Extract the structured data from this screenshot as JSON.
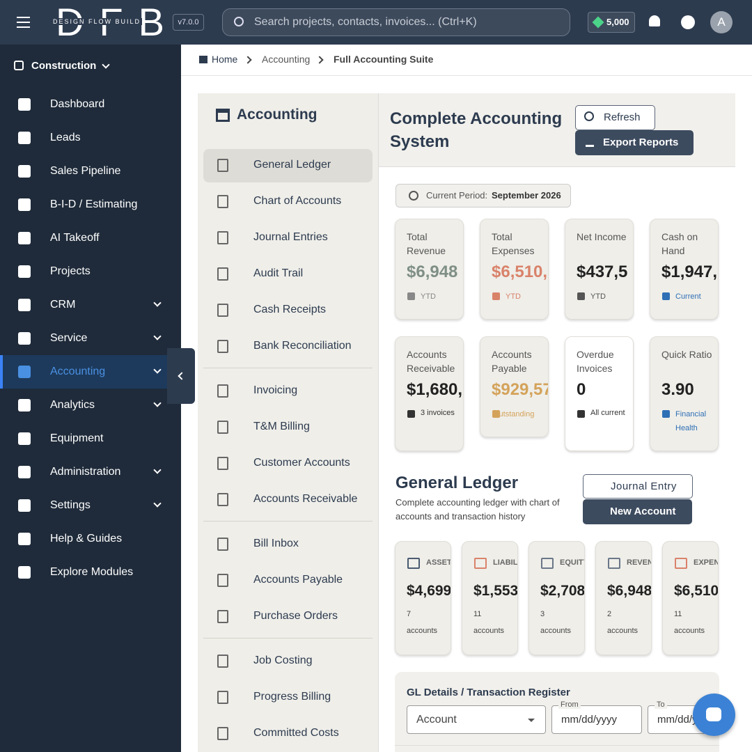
{
  "topbar": {
    "brand": "DFB",
    "tagline": "DESIGN FLOW BUILD",
    "version": "v7.0.0",
    "search_placeholder": "Search projects, contacts, invoices... (Ctrl+K)",
    "credits": "5,000",
    "avatar": "A"
  },
  "sidebar": {
    "workspace": "Construction",
    "items": [
      {
        "label": "Dashboard"
      },
      {
        "label": "Leads"
      },
      {
        "label": "Sales Pipeline"
      },
      {
        "label": "B-I-D / Estimating"
      },
      {
        "label": "AI Takeoff"
      },
      {
        "label": "Projects"
      },
      {
        "label": "CRM",
        "expandable": true
      },
      {
        "label": "Service",
        "expandable": true
      },
      {
        "label": "Accounting",
        "expandable": true,
        "active": true
      },
      {
        "label": "Analytics",
        "expandable": true
      },
      {
        "label": "Equipment"
      },
      {
        "label": "Administration",
        "expandable": true
      },
      {
        "label": "Settings",
        "expandable": true
      },
      {
        "label": "Help & Guides"
      },
      {
        "label": "Explore Modules"
      }
    ]
  },
  "breadcrumb": [
    "Home",
    "Accounting",
    "Full Accounting Suite"
  ],
  "submenu": {
    "title": "Accounting",
    "groups": [
      [
        "General Ledger",
        "Chart of Accounts",
        "Journal Entries",
        "Audit Trail",
        "Cash Receipts",
        "Bank Reconciliation"
      ],
      [
        "Invoicing",
        "T&M Billing",
        "Customer Accounts",
        "Accounts Receivable"
      ],
      [
        "Bill Inbox",
        "Accounts Payable",
        "Purchase Orders"
      ],
      [
        "Job Costing",
        "Progress Billing",
        "Committed Costs"
      ]
    ],
    "active": "General Ledger"
  },
  "header": {
    "title": "Complete Accounting System",
    "buttons": [
      "Refresh",
      "Export Reports"
    ]
  },
  "period": {
    "label": "Current Period:",
    "value": "September 2026"
  },
  "kpis": [
    {
      "label": "Total Revenue",
      "value": "$6,948",
      "note": "YTD",
      "color": "#7f8f86",
      "note_color": "#888888"
    },
    {
      "label": "Total Expenses",
      "value": "$6,510,",
      "note": "YTD",
      "color": "#d9826a",
      "note_color": "#d9826a"
    },
    {
      "label": "Net Income",
      "value": "$437,5",
      "note": "YTD",
      "color": "#222222",
      "note_color": "#555555"
    },
    {
      "label": "Cash on Hand",
      "value": "$1,947,",
      "note": "Current",
      "color": "#222222",
      "note_color": "#2f6fb5"
    },
    {
      "label": "Accounts Receivable",
      "value": "$1,680,",
      "note": "3 invoices",
      "color": "#222222",
      "note_color": "#333333"
    },
    {
      "label": "Accounts Payable",
      "value": "$929,57",
      "note": "Outstanding",
      "color": "#d4a35a",
      "note_color": "#d4a35a"
    },
    {
      "label": "Overdue Invoices",
      "value": "0",
      "note": "All current",
      "color": "#222222",
      "note_color": "#333333"
    },
    {
      "label": "Quick Ratio",
      "value": "3.90",
      "note": "Financial Health",
      "color": "#222222",
      "note_color": "#2f6fb5"
    }
  ],
  "ledger": {
    "title": "General Ledger",
    "description": "Complete accounting ledger with chart of accounts and transaction history",
    "buttons": [
      "Journal Entry",
      "New Account"
    ],
    "account_types": [
      {
        "name": "ASSET",
        "value": "$4,699",
        "count": "7",
        "unit": "accounts",
        "color": "#4a5a70"
      },
      {
        "name": "LIABILI",
        "value": "$1,553,",
        "count": "11",
        "unit": "accounts",
        "color": "#d9826a"
      },
      {
        "name": "EQUITY",
        "value": "$2,708",
        "count": "3",
        "unit": "accounts",
        "color": "#6b7789"
      },
      {
        "name": "REVENU",
        "value": "$6,948",
        "count": "2",
        "unit": "accounts",
        "color": "#6b7789"
      },
      {
        "name": "EXPENS",
        "value": "$6,510",
        "count": "11",
        "unit": "accounts",
        "color": "#d9826a"
      }
    ]
  },
  "gl_details": {
    "title": "GL Details / Transaction Register",
    "account_placeholder": "Account",
    "from_label": "From",
    "to_label": "To",
    "date_placeholder": "mm/dd/yyyy"
  }
}
